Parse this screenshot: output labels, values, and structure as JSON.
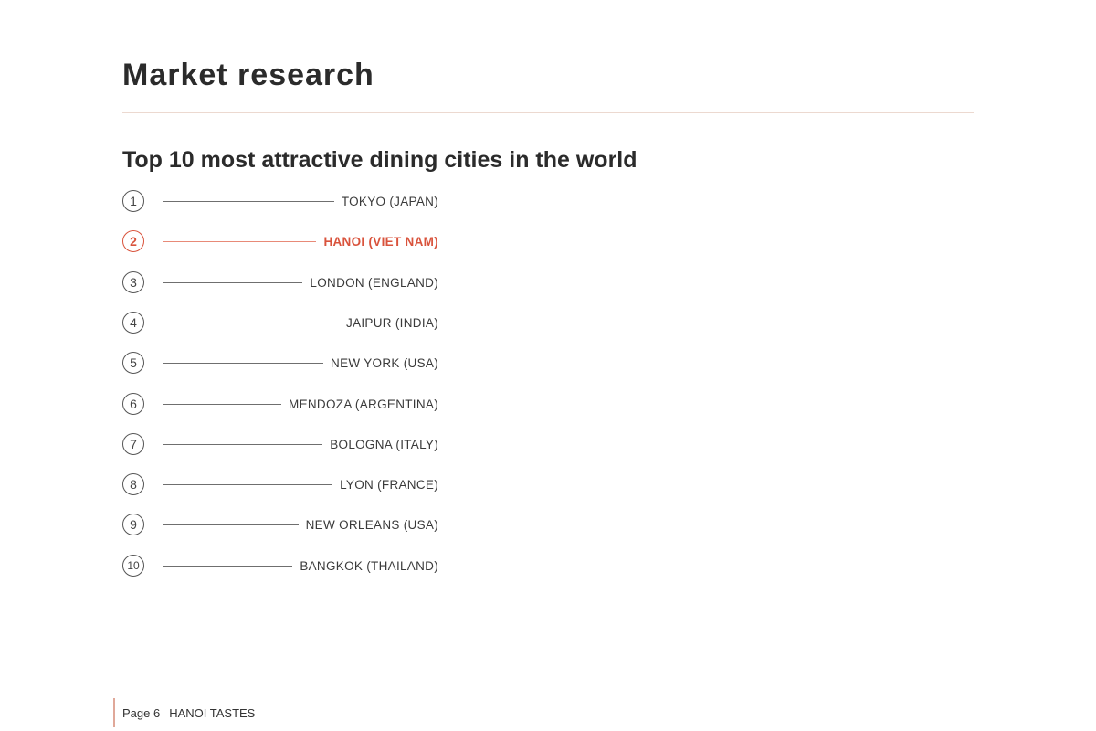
{
  "document": {
    "title": "Market research",
    "section_heading": "Top 10 most attractive dining cities in the world"
  },
  "ranking": {
    "highlight_color": "#d9533c",
    "items": [
      {
        "rank": "1",
        "city": "TOKYO (JAPAN)",
        "highlighted": false
      },
      {
        "rank": "2",
        "city": "HANOI (VIET NAM)",
        "highlighted": true
      },
      {
        "rank": "3",
        "city": "LONDON (ENGLAND)",
        "highlighted": false
      },
      {
        "rank": "4",
        "city": "JAIPUR (INDIA)",
        "highlighted": false
      },
      {
        "rank": "5",
        "city": "NEW YORK (USA)",
        "highlighted": false
      },
      {
        "rank": "6",
        "city": "MENDOZA (ARGENTINA)",
        "highlighted": false
      },
      {
        "rank": "7",
        "city": "BOLOGNA (ITALY)",
        "highlighted": false
      },
      {
        "rank": "8",
        "city": "LYON (FRANCE)",
        "highlighted": false
      },
      {
        "rank": "9",
        "city": "NEW ORLEANS (USA)",
        "highlighted": false
      },
      {
        "rank": "10",
        "city": "BANGKOK (THAILAND)",
        "highlighted": false
      }
    ]
  },
  "footer": {
    "page_label": "Page 6",
    "publication": "HANOI TASTES",
    "accent_color": "#e0a899"
  }
}
